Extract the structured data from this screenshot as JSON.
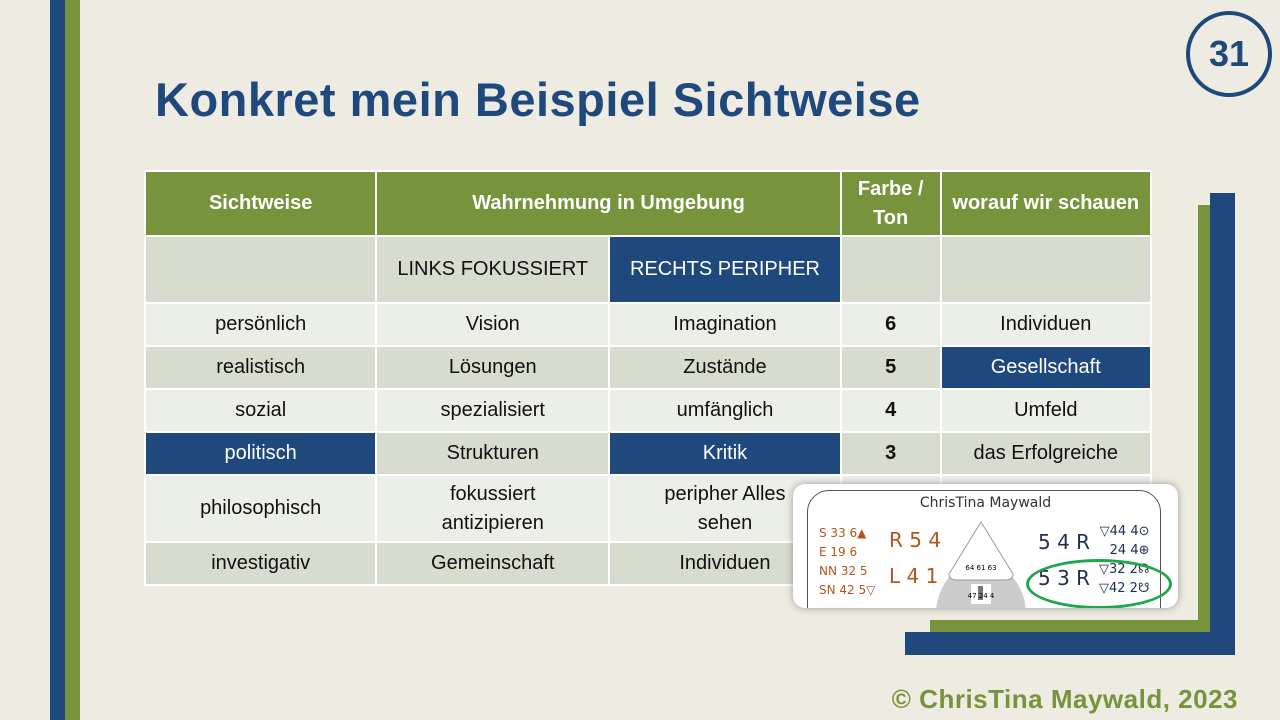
{
  "title": "Konkret mein Beispiel Sichtweise",
  "page_number": "31",
  "footer": "© ChrisTina Maywald, 2023",
  "colors": {
    "blue": "#1f497d",
    "green": "#77933c",
    "background": "#eeebe2"
  },
  "table": {
    "headers": [
      "Sichtweise",
      "Wahrnehmung in Umgebung",
      "Farbe / Ton",
      "worauf wir schauen"
    ],
    "subheader": [
      "",
      "LINKS FOKUSSIERT",
      "RECHTS PERIPHER",
      "",
      ""
    ],
    "rows": [
      [
        "persönlich",
        "Vision",
        "Imagination",
        "6",
        "Individuen"
      ],
      [
        "realistisch",
        "Lösungen",
        "Zustände",
        "5",
        "Gesellschaft"
      ],
      [
        "sozial",
        "spezialisiert",
        "umfänglich",
        "4",
        "Umfeld"
      ],
      [
        "politisch",
        "Strukturen",
        "Kritik",
        "3",
        "das Erfolgreiche"
      ],
      [
        "philosophisch",
        "fokussiert antizipieren",
        "peripher Alles sehen",
        "",
        ""
      ],
      [
        "investigativ",
        "Gemeinschaft",
        "Individuen",
        "",
        ""
      ]
    ]
  },
  "chart_inset": {
    "name": "ChrisTina Maywald",
    "left": [
      "S 33 6▲",
      "E 19 6",
      "NN 32 5",
      "SN 42 5▽"
    ],
    "left_arrows": [
      "R 5 4",
      "L 4 1"
    ],
    "center_top": "64 61 63",
    "center_bottom": "47 24 4",
    "right_arrows": [
      "5 4 R",
      "5 3 R"
    ],
    "right": [
      "▽44 4⊙",
      "24 4⊕",
      "▽32 2☊",
      "▽42 2☋"
    ]
  }
}
